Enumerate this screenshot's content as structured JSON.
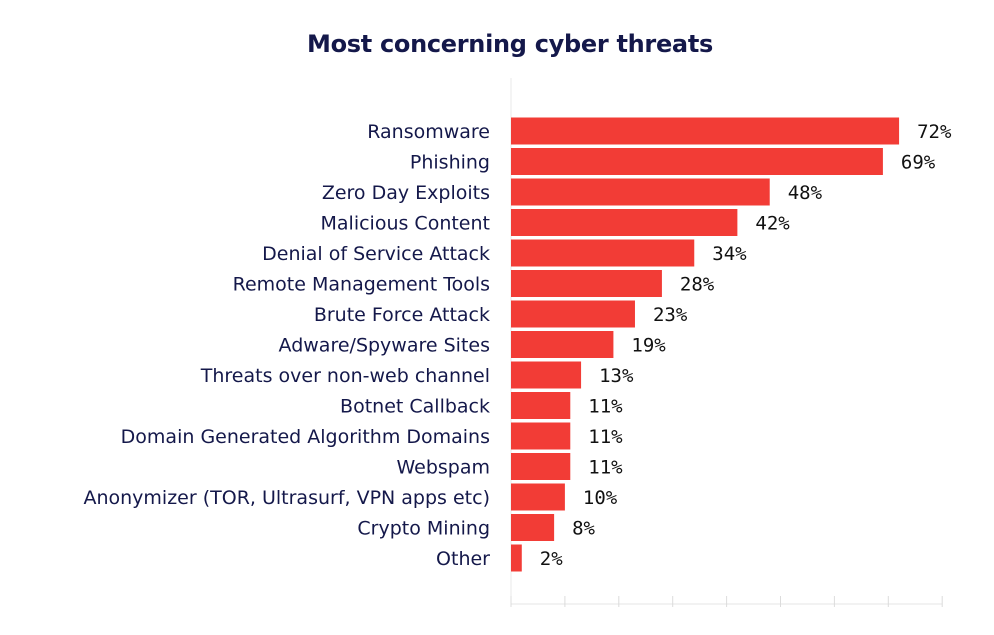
{
  "chart_data": {
    "type": "bar",
    "orientation": "horizontal",
    "title": "Most concerning cyber threats",
    "categories": [
      "Ransomware",
      "Phishing",
      "Zero Day Exploits",
      "Malicious Content",
      "Denial of Service Attack",
      "Remote Management Tools",
      "Brute Force Attack",
      "Adware/Spyware Sites",
      "Threats over non-web channel",
      "Botnet Callback",
      "Domain Generated Algorithm Domains",
      "Webspam",
      "Anonymizer (TOR, Ultrasurf, VPN apps etc)",
      "Crypto Mining",
      "Other"
    ],
    "values": [
      72,
      69,
      48,
      42,
      34,
      28,
      23,
      19,
      13,
      11,
      11,
      11,
      10,
      8,
      2
    ],
    "value_labels": [
      "72%",
      "69%",
      "48%",
      "42%",
      "34%",
      "28%",
      "23%",
      "19%",
      "13%",
      "11%",
      "11%",
      "11%",
      "10%",
      "8%",
      "2%"
    ],
    "xlim": [
      0,
      80
    ],
    "xlabel": "",
    "ylabel": "",
    "grid": false,
    "bar_color": "#f23c36"
  }
}
